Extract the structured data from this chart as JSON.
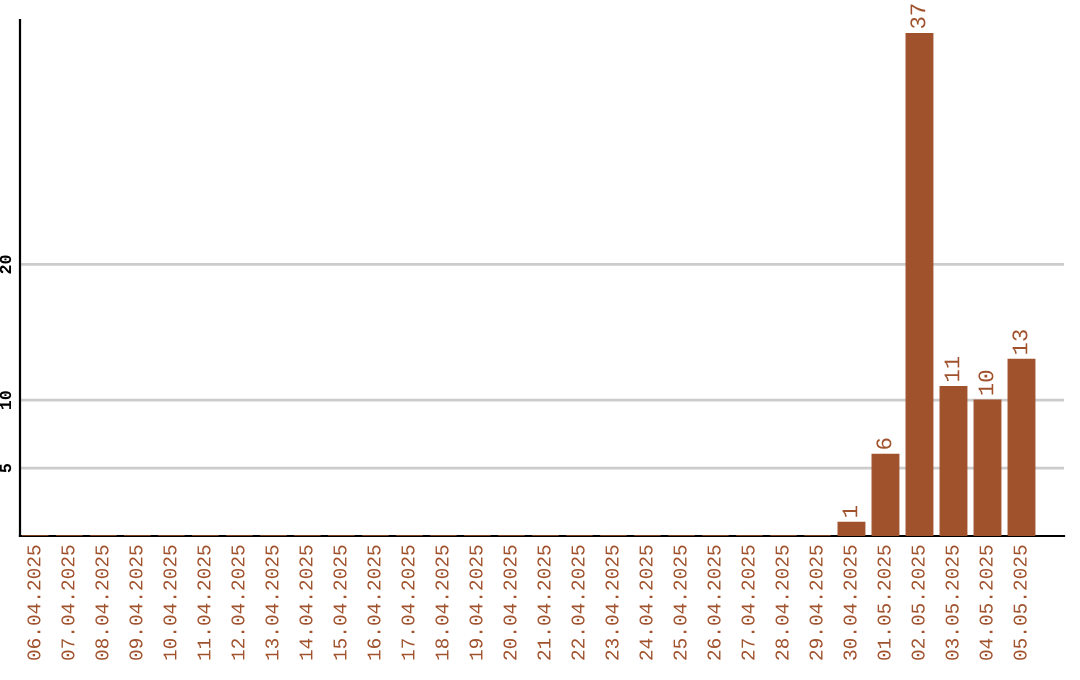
{
  "chart_data": {
    "type": "bar",
    "categories": [
      "06.04.2025",
      "07.04.2025",
      "08.04.2025",
      "09.04.2025",
      "10.04.2025",
      "11.04.2025",
      "12.04.2025",
      "13.04.2025",
      "14.04.2025",
      "15.04.2025",
      "16.04.2025",
      "17.04.2025",
      "18.04.2025",
      "19.04.2025",
      "20.04.2025",
      "21.04.2025",
      "22.04.2025",
      "23.04.2025",
      "24.04.2025",
      "25.04.2025",
      "26.04.2025",
      "27.04.2025",
      "28.04.2025",
      "29.04.2025",
      "30.04.2025",
      "01.05.2025",
      "02.05.2025",
      "03.05.2025",
      "04.05.2025",
      "05.05.2025"
    ],
    "values": [
      0,
      0,
      0,
      0,
      0,
      0,
      0,
      0,
      0,
      0,
      0,
      0,
      0,
      0,
      0,
      0,
      0,
      0,
      0,
      0,
      0,
      0,
      0,
      0,
      1,
      6,
      37,
      11,
      10,
      13
    ],
    "value_labels": [
      null,
      null,
      null,
      null,
      null,
      null,
      null,
      null,
      null,
      null,
      null,
      null,
      null,
      null,
      null,
      null,
      null,
      null,
      null,
      null,
      null,
      null,
      null,
      null,
      "1",
      "6",
      "37",
      "11",
      "10",
      "13"
    ],
    "color": "#a0522d",
    "ylim": [
      0,
      38
    ],
    "yticks": [
      5,
      10,
      20
    ],
    "grid": "y"
  }
}
